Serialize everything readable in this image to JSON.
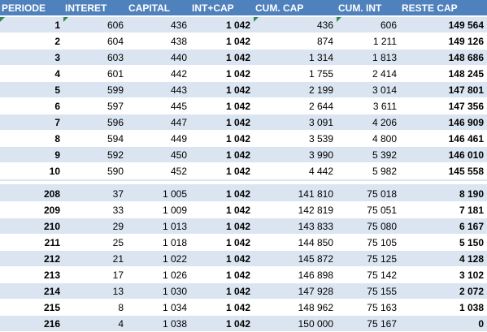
{
  "headers": [
    "PERIODE",
    "INTERET",
    "CAPITAL",
    "INT+CAP",
    "CUM. CAP",
    "CUM. INT",
    "RESTE CAP"
  ],
  "rows_top": [
    [
      "1",
      "606",
      "436",
      "1 042",
      "436",
      "606",
      "149 564"
    ],
    [
      "2",
      "604",
      "438",
      "1 042",
      "874",
      "1 211",
      "149 126"
    ],
    [
      "3",
      "603",
      "440",
      "1 042",
      "1 314",
      "1 813",
      "148 686"
    ],
    [
      "4",
      "601",
      "442",
      "1 042",
      "1 755",
      "2 414",
      "148 245"
    ],
    [
      "5",
      "599",
      "443",
      "1 042",
      "2 199",
      "3 014",
      "147 801"
    ],
    [
      "6",
      "597",
      "445",
      "1 042",
      "2 644",
      "3 611",
      "147 356"
    ],
    [
      "7",
      "596",
      "447",
      "1 042",
      "3 091",
      "4 206",
      "146 909"
    ],
    [
      "8",
      "594",
      "449",
      "1 042",
      "3 539",
      "4 800",
      "146 461"
    ],
    [
      "9",
      "592",
      "450",
      "1 042",
      "3 990",
      "5 392",
      "146 010"
    ],
    [
      "10",
      "590",
      "452",
      "1 042",
      "4 442",
      "5 982",
      "145 558"
    ]
  ],
  "rows_bottom": [
    [
      "208",
      "37",
      "1 005",
      "1 042",
      "141 810",
      "75 018",
      "8 190"
    ],
    [
      "209",
      "33",
      "1 009",
      "1 042",
      "142 819",
      "75 051",
      "7 181"
    ],
    [
      "210",
      "29",
      "1 013",
      "1 042",
      "143 833",
      "75 080",
      "6 167"
    ],
    [
      "211",
      "25",
      "1 018",
      "1 042",
      "144 850",
      "75 105",
      "5 150"
    ],
    [
      "212",
      "21",
      "1 022",
      "1 042",
      "145 872",
      "75 125",
      "4 128"
    ],
    [
      "213",
      "17",
      "1 026",
      "1 042",
      "146 898",
      "75 142",
      "3 102"
    ],
    [
      "214",
      "13",
      "1 030",
      "1 042",
      "147 928",
      "75 155",
      "2 072"
    ],
    [
      "215",
      "8",
      "1 034",
      "1 042",
      "148 962",
      "75 163",
      "1 038"
    ],
    [
      "216",
      "4",
      "1 038",
      "1 042",
      "150 000",
      "75 167",
      "0"
    ]
  ],
  "colors": {
    "header_bg": "#4f81bd",
    "band_bg": "#dbe5f1",
    "error_marker": "#2e8b57"
  }
}
